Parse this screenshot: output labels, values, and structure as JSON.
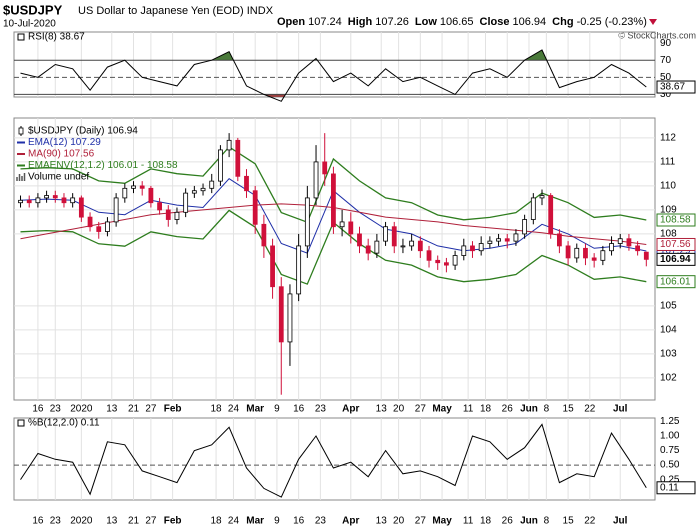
{
  "chart_data": {
    "type": "candlestick",
    "symbol": "$USDJPY",
    "name": "US Dollar to Japanese Yen (EOD) INDX",
    "date": "10-Jul-2020",
    "quote": [
      {
        "label": "Open",
        "value": "107.24"
      },
      {
        "label": "High",
        "value": "107.26"
      },
      {
        "label": "Low",
        "value": "106.65"
      },
      {
        "label": "Close",
        "value": "106.94"
      },
      {
        "label": "Chg",
        "value": "-0.25 (-0.23%)"
      }
    ],
    "credit": "© StockCharts.com",
    "volume_label": "Volume undef",
    "xlim": [
      -1.5,
      146
    ],
    "xticks": [
      {
        "value": 4,
        "label": "16"
      },
      {
        "value": 8,
        "label": "23"
      },
      {
        "value": 14,
        "label": "2020"
      },
      {
        "value": 21,
        "label": "13"
      },
      {
        "value": 26,
        "label": "21"
      },
      {
        "value": 30,
        "label": "27"
      },
      {
        "value": 35,
        "label": "Feb"
      },
      {
        "value": 45,
        "label": "18"
      },
      {
        "value": 49,
        "label": "24"
      },
      {
        "value": 54,
        "label": "Mar"
      },
      {
        "value": 59,
        "label": "9"
      },
      {
        "value": 64,
        "label": "16"
      },
      {
        "value": 69,
        "label": "23"
      },
      {
        "value": 76,
        "label": "Apr"
      },
      {
        "value": 83,
        "label": "13"
      },
      {
        "value": 87,
        "label": "20"
      },
      {
        "value": 92,
        "label": "27"
      },
      {
        "value": 97,
        "label": "May"
      },
      {
        "value": 103,
        "label": "11"
      },
      {
        "value": 107,
        "label": "18"
      },
      {
        "value": 112,
        "label": "26"
      },
      {
        "value": 117,
        "label": "Jun"
      },
      {
        "value": 121,
        "label": "8"
      },
      {
        "value": 126,
        "label": "15"
      },
      {
        "value": 131,
        "label": "22"
      },
      {
        "value": 138,
        "label": "Jul"
      }
    ],
    "ylim": [
      101.08,
      112.83
    ],
    "yticks": [
      102,
      103,
      104,
      105,
      108,
      109,
      110,
      111,
      112
    ],
    "grid": true,
    "candles": {
      "name": "$USDJPY (Daily) 106.94",
      "tag": "106.94",
      "up_color": "#ffffff",
      "down_color": "#d0103a",
      "x": [
        0,
        2,
        4,
        6,
        8,
        10,
        12,
        14,
        16,
        18,
        20,
        22,
        24,
        26,
        28,
        30,
        32,
        34,
        36,
        38,
        40,
        42,
        44,
        46,
        48,
        50,
        52,
        54,
        56,
        58,
        60,
        62,
        64,
        66,
        68,
        70,
        72,
        74,
        76,
        78,
        80,
        82,
        84,
        86,
        88,
        90,
        92,
        94,
        96,
        98,
        100,
        102,
        104,
        106,
        108,
        110,
        112,
        114,
        116,
        118,
        120,
        122,
        124,
        126,
        128,
        130,
        132,
        134,
        136,
        138,
        140,
        142,
        144
      ],
      "open": [
        109.3,
        109.4,
        109.3,
        109.5,
        109.6,
        109.5,
        109.3,
        109.5,
        108.7,
        108.3,
        108.1,
        108.5,
        109.5,
        109.9,
        110.0,
        109.9,
        109.3,
        109.0,
        108.6,
        108.9,
        109.7,
        109.8,
        109.9,
        110.2,
        111.5,
        111.9,
        110.4,
        109.8,
        108.4,
        107.5,
        105.8,
        103.5,
        105.5,
        107.5,
        109.5,
        111.0,
        110.5,
        108.3,
        108.5,
        108.0,
        107.5,
        107.2,
        107.7,
        108.3,
        107.5,
        107.5,
        107.7,
        107.3,
        106.9,
        106.8,
        106.7,
        107.1,
        107.5,
        107.3,
        107.6,
        107.7,
        107.8,
        107.7,
        108.0,
        108.6,
        109.5,
        109.6,
        108.0,
        107.5,
        107.0,
        107.4,
        107.0,
        106.9,
        107.3,
        107.6,
        107.8,
        107.5,
        107.24
      ],
      "high": [
        109.6,
        109.6,
        109.7,
        109.8,
        109.8,
        109.7,
        109.7,
        109.6,
        108.9,
        108.5,
        108.7,
        109.7,
        110.1,
        110.2,
        110.2,
        110.0,
        109.5,
        109.2,
        109.1,
        109.9,
        110.0,
        110.1,
        110.5,
        111.7,
        112.2,
        112.0,
        110.7,
        110.0,
        108.8,
        107.8,
        106.2,
        105.9,
        108.0,
        110.0,
        111.7,
        112.2,
        110.8,
        109.0,
        108.9,
        108.3,
        107.8,
        108.0,
        108.5,
        108.5,
        107.8,
        108.0,
        107.9,
        107.5,
        107.1,
        107.0,
        107.3,
        107.8,
        107.7,
        107.9,
        107.9,
        108.0,
        108.0,
        108.2,
        108.8,
        109.7,
        109.85,
        109.7,
        108.2,
        107.7,
        107.6,
        107.6,
        107.2,
        107.5,
        107.9,
        108.0,
        108.0,
        107.7,
        107.26
      ],
      "low": [
        109.1,
        109.1,
        109.1,
        109.3,
        109.3,
        109.1,
        109.1,
        108.5,
        108.1,
        107.8,
        107.9,
        108.3,
        109.3,
        109.7,
        109.6,
        109.1,
        108.8,
        108.3,
        108.4,
        108.7,
        109.5,
        109.6,
        109.7,
        110.0,
        111.2,
        110.2,
        109.5,
        108.0,
        107.0,
        105.3,
        101.3,
        102.5,
        105.2,
        107.0,
        109.2,
        110.0,
        108.0,
        107.9,
        107.6,
        107.2,
        106.9,
        107.0,
        107.5,
        107.2,
        107.2,
        107.3,
        107.0,
        106.6,
        106.5,
        106.4,
        106.5,
        106.9,
        107.0,
        107.1,
        107.4,
        107.5,
        107.4,
        107.5,
        107.8,
        108.4,
        109.2,
        107.8,
        107.2,
        106.7,
        106.8,
        106.7,
        106.6,
        106.7,
        107.1,
        107.4,
        107.3,
        107.1,
        106.65
      ],
      "close": [
        109.4,
        109.3,
        109.5,
        109.6,
        109.5,
        109.3,
        109.5,
        108.7,
        108.3,
        108.1,
        108.5,
        109.5,
        109.9,
        110.0,
        109.9,
        109.3,
        109.0,
        108.6,
        108.9,
        109.7,
        109.8,
        109.9,
        110.2,
        111.5,
        111.9,
        110.4,
        109.8,
        108.4,
        107.5,
        105.8,
        103.5,
        105.5,
        107.5,
        109.5,
        111.0,
        110.5,
        108.3,
        108.5,
        108.0,
        107.5,
        107.2,
        107.7,
        108.3,
        107.5,
        107.5,
        107.7,
        107.3,
        106.9,
        106.8,
        106.7,
        107.1,
        107.5,
        107.3,
        107.6,
        107.7,
        107.8,
        107.7,
        108.0,
        108.6,
        109.5,
        109.6,
        108.0,
        107.5,
        107.0,
        107.4,
        107.0,
        106.9,
        107.3,
        107.6,
        107.8,
        107.5,
        107.3,
        106.94
      ]
    },
    "lines_x": [
      0,
      6,
      12,
      18,
      24,
      30,
      36,
      42,
      48,
      54,
      60,
      66,
      72,
      78,
      84,
      90,
      96,
      102,
      108,
      114,
      120,
      126,
      132,
      138,
      144
    ],
    "series": [
      {
        "name": "EMA(12) 107.29",
        "tag": "107.29",
        "color": "#1f2fa8",
        "values": [
          109.4,
          109.45,
          109.4,
          108.9,
          108.8,
          109.4,
          109.2,
          109.1,
          110.3,
          109.6,
          107.6,
          107.2,
          109.8,
          108.9,
          108.2,
          108.0,
          107.5,
          107.3,
          107.4,
          107.6,
          108.4,
          108.0,
          107.4,
          107.5,
          107.29
        ]
      },
      {
        "name": "MA(90) 107.56",
        "tag": "107.56",
        "color": "#b0203a",
        "values": [
          107.8,
          108.0,
          108.2,
          108.4,
          108.6,
          108.8,
          108.9,
          109.0,
          109.1,
          109.2,
          109.25,
          109.2,
          109.1,
          108.9,
          108.7,
          108.6,
          108.5,
          108.35,
          108.25,
          108.15,
          108.05,
          107.9,
          107.8,
          107.7,
          107.56
        ]
      }
    ],
    "envelope": {
      "name": "EMAENV(12,1.2) 106.01 - 108.58",
      "color": "#2e7d1e",
      "upper_tag": "108.58",
      "lower_tag": "106.01",
      "upper": [
        110.71,
        110.76,
        110.71,
        110.21,
        110.11,
        110.71,
        110.51,
        110.41,
        111.62,
        110.92,
        108.89,
        108.49,
        111.12,
        110.21,
        109.5,
        109.3,
        108.79,
        108.59,
        108.69,
        108.89,
        109.7,
        109.3,
        108.69,
        108.79,
        108.58
      ],
      "lower": [
        108.09,
        108.14,
        108.09,
        107.59,
        107.49,
        108.09,
        107.89,
        107.79,
        108.98,
        108.28,
        106.31,
        105.91,
        108.48,
        107.59,
        106.9,
        106.7,
        106.21,
        106.01,
        106.11,
        106.31,
        107.1,
        106.7,
        106.11,
        106.21,
        106.01
      ]
    },
    "indicators": [
      {
        "type": "line",
        "name": "RSI(8) 38.67",
        "tag": "38.67",
        "color": "#000000",
        "ylim": [
          27,
          103
        ],
        "yticks": [
          30,
          50,
          70,
          90
        ],
        "upper_level": 70,
        "lower_level": 30,
        "midline": 50,
        "upper_fill": "#4a7a3a",
        "lower_fill": "#9a4040",
        "x": [
          0,
          4,
          8,
          12,
          16,
          20,
          24,
          28,
          32,
          36,
          40,
          44,
          48,
          52,
          56,
          60,
          64,
          68,
          72,
          76,
          80,
          84,
          88,
          92,
          96,
          100,
          104,
          108,
          112,
          116,
          120,
          124,
          128,
          132,
          136,
          140,
          144
        ],
        "values": [
          55,
          50,
          65,
          60,
          35,
          62,
          70,
          50,
          45,
          40,
          65,
          70,
          80,
          40,
          30,
          22,
          55,
          72,
          45,
          55,
          40,
          60,
          45,
          50,
          40,
          30,
          55,
          60,
          50,
          70,
          82,
          38,
          45,
          50,
          65,
          55,
          38.67
        ]
      },
      {
        "type": "line",
        "name": "%B(12,2.0) 0.11",
        "tag": "0.11",
        "color": "#000000",
        "ylim": [
          -0.1,
          1.31
        ],
        "yticks": [
          1.25,
          {
            "value": 1,
            "label": "1.00"
          },
          0.75,
          {
            "value": 0.5,
            "label": "0.50"
          },
          0.25
        ],
        "midline": 0.5,
        "x": [
          0,
          4,
          8,
          12,
          16,
          20,
          24,
          28,
          32,
          36,
          40,
          44,
          48,
          52,
          56,
          60,
          64,
          68,
          72,
          76,
          80,
          84,
          88,
          92,
          96,
          100,
          104,
          108,
          112,
          116,
          120,
          124,
          128,
          132,
          136,
          140,
          144
        ],
        "values": [
          0.25,
          0.7,
          0.6,
          0.55,
          0.0,
          0.9,
          0.85,
          0.4,
          0.3,
          0.2,
          0.75,
          0.85,
          1.15,
          0.45,
          0.1,
          -0.05,
          0.6,
          1.0,
          0.45,
          0.55,
          0.3,
          0.75,
          0.35,
          0.4,
          0.3,
          0.15,
          1.0,
          0.9,
          0.6,
          0.8,
          1.2,
          0.2,
          0.35,
          0.3,
          1.05,
          0.6,
          0.11
        ]
      }
    ]
  }
}
